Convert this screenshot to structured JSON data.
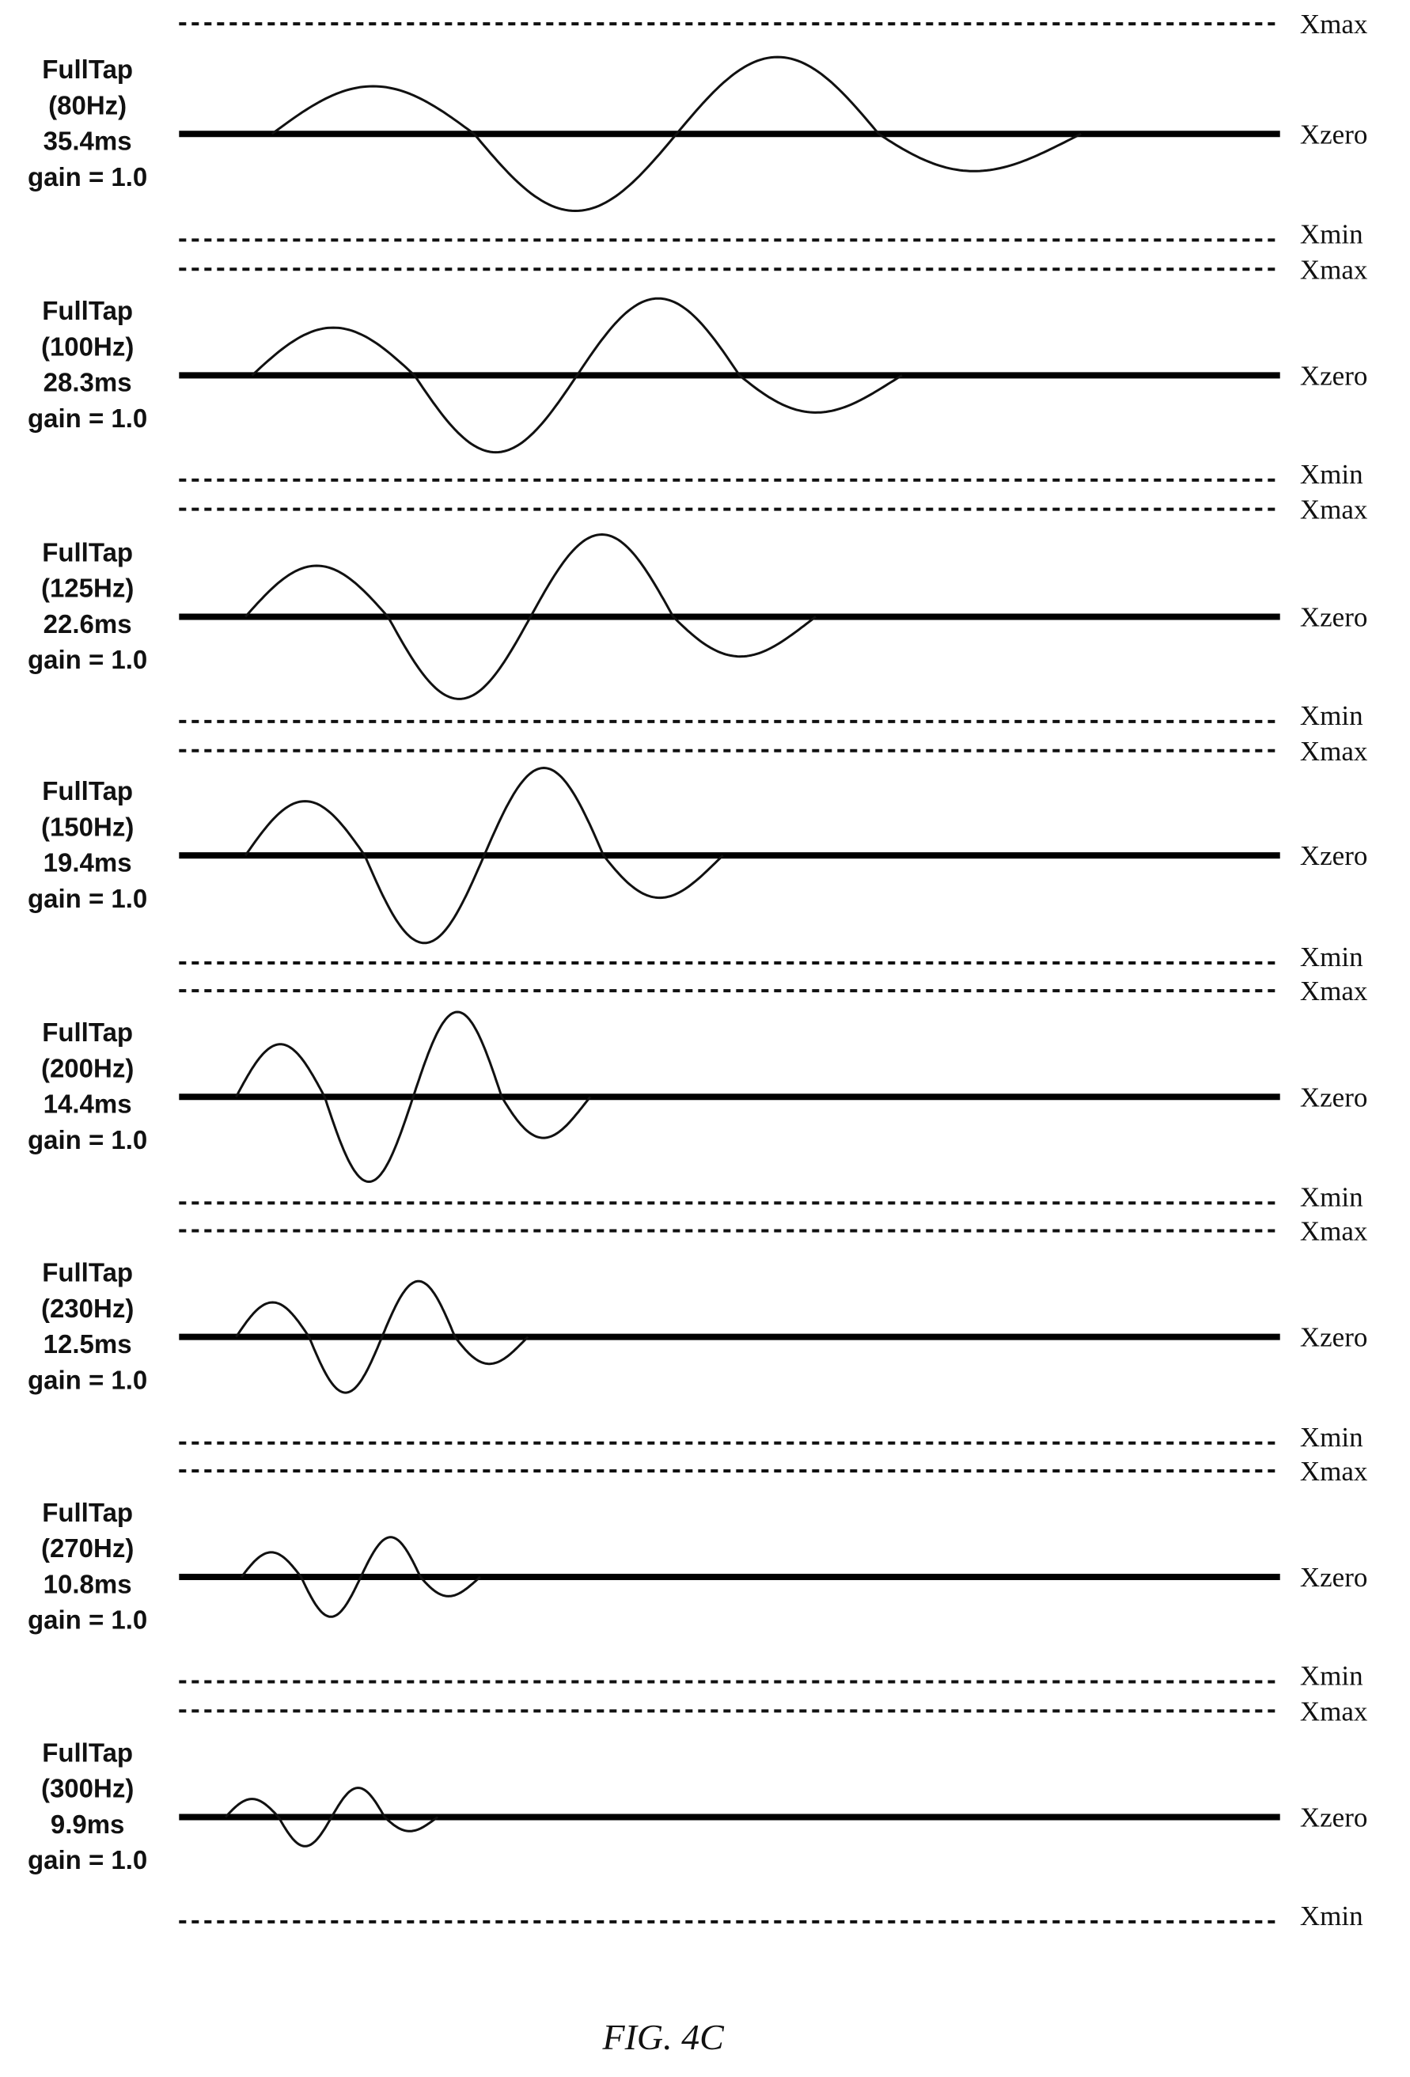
{
  "figure": {
    "caption": "FIG. 4C",
    "axis_labels": {
      "max": "Xmax",
      "zero": "Xzero",
      "min": "Xmin"
    },
    "panels": [
      {
        "title": "FullTap",
        "freq": "(80Hz)",
        "duration": "35.4ms",
        "gain": "gain = 1.0"
      },
      {
        "title": "FullTap",
        "freq": "(100Hz)",
        "duration": "28.3ms",
        "gain": "gain = 1.0"
      },
      {
        "title": "FullTap",
        "freq": "(125Hz)",
        "duration": "22.6ms",
        "gain": "gain = 1.0"
      },
      {
        "title": "FullTap",
        "freq": "(150Hz)",
        "duration": "19.4ms",
        "gain": "gain = 1.0"
      },
      {
        "title": "FullTap",
        "freq": "(200Hz)",
        "duration": "14.4ms",
        "gain": "gain = 1.0"
      },
      {
        "title": "FullTap",
        "freq": "(230Hz)",
        "duration": "12.5ms",
        "gain": "gain = 1.0"
      },
      {
        "title": "FullTap",
        "freq": "(270Hz)",
        "duration": "10.8ms",
        "gain": "gain = 1.0"
      },
      {
        "title": "FullTap",
        "freq": "(300Hz)",
        "duration": "9.9ms",
        "gain": "gain = 1.0"
      }
    ]
  },
  "colors": {
    "ink": "#111111",
    "background": "#ffffff"
  }
}
